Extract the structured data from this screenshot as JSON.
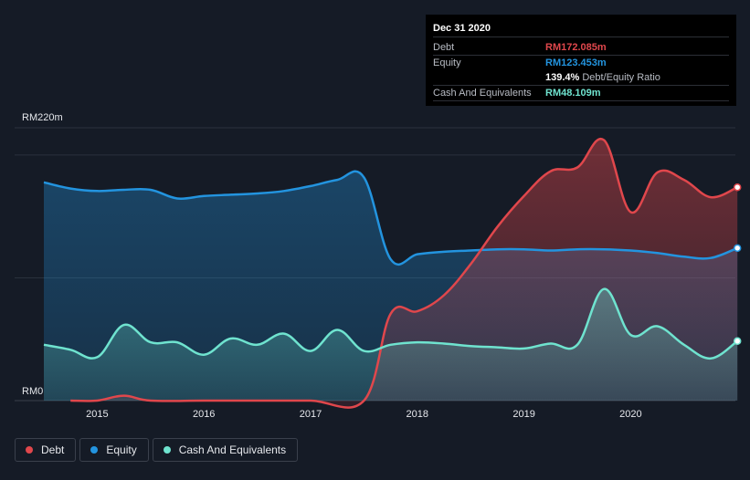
{
  "tooltip": {
    "date": "Dec 31 2020",
    "rows": [
      {
        "label": "Debt",
        "value": "RM172.085m",
        "color": "#e0474c"
      },
      {
        "label": "Equity",
        "value": "RM123.453m",
        "color": "#2394df"
      },
      {
        "label": "",
        "value": "139.4%",
        "suffix": "Debt/Equity Ratio",
        "color": "#ffffff"
      },
      {
        "label": "Cash And Equivalents",
        "value": "RM48.109m",
        "color": "#6fe3cf"
      }
    ]
  },
  "legend": [
    {
      "label": "Debt",
      "color": "#e0474c"
    },
    {
      "label": "Equity",
      "color": "#2394df"
    },
    {
      "label": "Cash And Equivalents",
      "color": "#6fe3cf"
    }
  ],
  "chart_data": {
    "type": "area",
    "title": "",
    "xlabel": "",
    "ylabel": "",
    "y_top_label": "RM220m",
    "y_bottom_label": "RM0",
    "ylim": [
      0,
      220
    ],
    "xlim": [
      2014.5,
      2021.0
    ],
    "x_ticks": [
      {
        "value": 2015,
        "label": "2015"
      },
      {
        "value": 2016,
        "label": "2016"
      },
      {
        "value": 2017,
        "label": "2017"
      },
      {
        "value": 2018,
        "label": "2018"
      },
      {
        "value": 2019,
        "label": "2019"
      },
      {
        "value": 2020,
        "label": "2020"
      }
    ],
    "series": [
      {
        "name": "Debt",
        "color": "#e0474c",
        "x": [
          2014.75,
          2015.0,
          2015.25,
          2015.5,
          2016.0,
          2016.5,
          2017.0,
          2017.5,
          2017.75,
          2018.0,
          2018.25,
          2018.5,
          2018.75,
          2019.0,
          2019.25,
          2019.5,
          2019.75,
          2020.0,
          2020.25,
          2020.5,
          2020.75,
          2021.0
        ],
        "values": [
          0,
          0,
          4,
          0,
          0,
          0,
          0,
          0,
          70,
          72,
          85,
          110,
          140,
          165,
          185,
          188,
          210,
          152,
          184,
          178,
          164,
          172
        ]
      },
      {
        "name": "Equity",
        "color": "#2394df",
        "x": [
          2014.5,
          2014.75,
          2015.0,
          2015.25,
          2015.5,
          2015.75,
          2016.0,
          2016.25,
          2016.5,
          2016.75,
          2017.0,
          2017.25,
          2017.5,
          2017.75,
          2018.0,
          2018.25,
          2018.5,
          2018.75,
          2019.0,
          2019.25,
          2019.5,
          2019.75,
          2020.0,
          2020.25,
          2020.5,
          2020.75,
          2021.0
        ],
        "values": [
          176,
          171,
          169,
          170,
          170,
          163,
          165,
          166,
          167,
          169,
          173,
          178,
          180,
          114,
          118,
          120,
          121,
          122,
          122,
          121,
          122,
          122,
          121,
          119,
          116,
          115,
          123
        ]
      },
      {
        "name": "Cash And Equivalents",
        "color": "#6fe3cf",
        "x": [
          2014.5,
          2014.75,
          2015.0,
          2015.25,
          2015.5,
          2015.75,
          2016.0,
          2016.25,
          2016.5,
          2016.75,
          2017.0,
          2017.25,
          2017.5,
          2017.75,
          2018.0,
          2018.25,
          2018.5,
          2018.75,
          2019.0,
          2019.25,
          2019.5,
          2019.75,
          2020.0,
          2020.25,
          2020.5,
          2020.75,
          2021.0
        ],
        "values": [
          45,
          41,
          35,
          61,
          47,
          47,
          37,
          50,
          45,
          54,
          40,
          57,
          40,
          45,
          47,
          46,
          44,
          43,
          42,
          46,
          45,
          90,
          53,
          60,
          45,
          34,
          48
        ]
      }
    ],
    "grid": true,
    "legend_position": "bottom-left"
  }
}
